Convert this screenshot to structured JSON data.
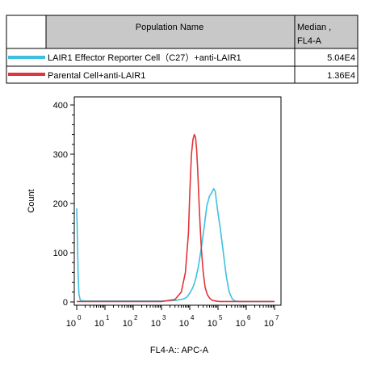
{
  "legend_table": {
    "header_population": "Population Name",
    "header_median": "Median ,",
    "header_median_sub": "FL4-A",
    "rows": [
      {
        "label": "LAIR1 Effector Reporter Cell（C27）+anti-LAIR1",
        "median": "5.04E4",
        "color": "#3fc0e0"
      },
      {
        "label": "Parental Cell+anti-LAIR1",
        "median": "1.36E4",
        "color": "#e0353a"
      }
    ]
  },
  "chart_data": {
    "type": "line",
    "xlabel": "FL4-A:: APC-A",
    "ylabel": "Count",
    "x_scale": "log",
    "xlim": [
      1,
      10000000
    ],
    "ylim": [
      0,
      400
    ],
    "y_ticks": [
      "0",
      "100",
      "200",
      "300",
      "400"
    ],
    "x_ticks": [
      {
        "base": "10",
        "exp": "0"
      },
      {
        "base": "10",
        "exp": "1"
      },
      {
        "base": "10",
        "exp": "2"
      },
      {
        "base": "10",
        "exp": "3"
      },
      {
        "base": "10",
        "exp": "4"
      },
      {
        "base": "10",
        "exp": "5"
      },
      {
        "base": "10",
        "exp": "6"
      },
      {
        "base": "10",
        "exp": "7"
      }
    ],
    "series": [
      {
        "name": "LAIR1 Effector Reporter Cell（C27）+anti-LAIR1",
        "color": "#3fc0e0",
        "x": [
          1,
          1.06,
          1.12,
          1.2,
          1.35,
          2,
          10,
          100,
          1000,
          3000,
          6000,
          8000,
          10000,
          13000,
          16000,
          20000,
          25000,
          32000,
          40000,
          50000,
          60000,
          70000,
          80000,
          90000,
          100000,
          120000,
          140000,
          170000,
          200000,
          250000,
          320000,
          400000,
          600000,
          1000000,
          10000000
        ],
        "y": [
          190,
          130,
          60,
          15,
          3,
          2,
          2,
          2,
          2,
          3,
          6,
          10,
          18,
          30,
          45,
          70,
          105,
          150,
          195,
          215,
          222,
          230,
          225,
          200,
          180,
          150,
          120,
          80,
          50,
          20,
          6,
          2,
          1,
          1,
          1
        ]
      },
      {
        "name": "Parental Cell+anti-LAIR1",
        "color": "#e0353a",
        "x": [
          1,
          100,
          1000,
          3000,
          5000,
          7000,
          9000,
          10000,
          11500,
          13000,
          14500,
          16000,
          17500,
          19000,
          21000,
          23000,
          26000,
          30000,
          35000,
          42000,
          50000,
          60000,
          80000,
          120000,
          10000000
        ],
        "y": [
          1,
          1,
          1,
          5,
          20,
          60,
          140,
          220,
          300,
          330,
          340,
          335,
          310,
          270,
          210,
          160,
          105,
          60,
          30,
          15,
          8,
          4,
          2,
          1,
          1
        ]
      }
    ]
  }
}
